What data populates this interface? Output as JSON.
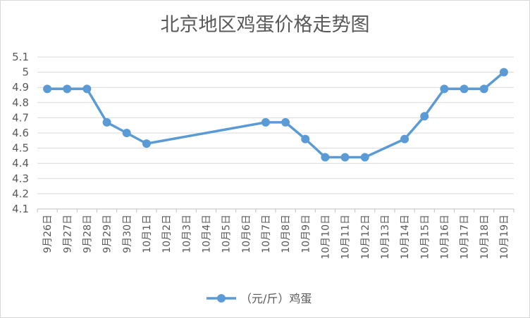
{
  "chart_data": {
    "type": "line",
    "title": "北京地区鸡蛋价格走势图",
    "xlabel": "",
    "ylabel": "",
    "categories": [
      "9月26日",
      "9月27日",
      "9月28日",
      "9月29日",
      "9月30日",
      "10月1日",
      "10月2日",
      "10月3日",
      "10月4日",
      "10月5日",
      "10月6日",
      "10月7日",
      "10月8日",
      "10月9日",
      "10月10日",
      "10月11日",
      "10月12日",
      "10月13日",
      "10月14日",
      "10月15日",
      "10月16日",
      "10月17日",
      "10月18日",
      "10月19日"
    ],
    "series": [
      {
        "name": "（元/斤）鸡蛋",
        "color": "#5b9bd5",
        "values": [
          4.89,
          4.89,
          4.89,
          4.67,
          4.6,
          4.53,
          null,
          null,
          null,
          null,
          null,
          4.67,
          4.67,
          4.56,
          4.44,
          4.44,
          4.44,
          null,
          4.56,
          4.71,
          4.89,
          4.89,
          4.89,
          5.0
        ]
      }
    ],
    "ylim": [
      4.1,
      5.1
    ],
    "yticks": [
      4.1,
      4.2,
      4.3,
      4.4,
      4.5,
      4.6,
      4.7,
      4.8,
      4.9,
      5.0,
      5.1
    ],
    "ytick_labels": [
      "4.1",
      "4.2",
      "4.3",
      "4.4",
      "4.5",
      "4.6",
      "4.7",
      "4.8",
      "4.9",
      "5",
      "5.1"
    ],
    "grid": true,
    "legend": "bottom",
    "connect_gaps": true
  },
  "colors": {
    "series": "#5b9bd5",
    "grid": "#d9d9d9",
    "axis": "#bfbfbf",
    "text": "#595959"
  }
}
